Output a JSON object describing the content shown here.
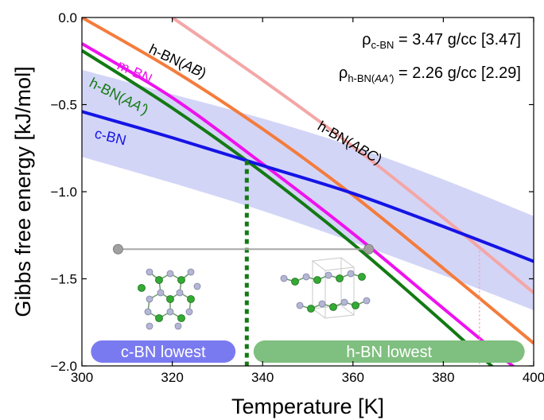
{
  "chart_data": {
    "type": "line",
    "xlabel": "Temperature [K]",
    "ylabel": "Gibbs free energy [kJ/mol]",
    "xlim": [
      300,
      400
    ],
    "ylim": [
      -2.0,
      0.0
    ],
    "x_ticks": [
      "300",
      "320",
      "340",
      "360",
      "380",
      "400"
    ],
    "y_ticks": [
      "0.0",
      "−0.5",
      "−1.0",
      "−1.5",
      "−2.0"
    ],
    "x_tick_values": [
      300,
      320,
      340,
      360,
      380,
      400
    ],
    "y_tick_values": [
      0.0,
      -0.5,
      -1.0,
      -1.5,
      -2.0
    ],
    "series": [
      {
        "name": "c-BN",
        "color": "#1414e6",
        "x": [
          300,
          320,
          340,
          360,
          380,
          400
        ],
        "y": [
          -0.54,
          -0.69,
          -0.85,
          -1.01,
          -1.2,
          -1.4
        ]
      },
      {
        "name": "h-BN(AB)",
        "color": "#f47c3c",
        "x": [
          300,
          320,
          340,
          360,
          380,
          400
        ],
        "y": [
          0.0,
          -0.3,
          -0.64,
          -1.02,
          -1.44,
          -1.87
        ]
      },
      {
        "name": "m-BN",
        "color": "#ee12ee",
        "x": [
          300,
          320,
          340,
          360,
          380,
          400
        ],
        "y": [
          -0.15,
          -0.46,
          -0.84,
          -1.24,
          -1.67,
          -2.1
        ]
      },
      {
        "name": "h-BN(AA')",
        "color": "#137a13",
        "x": [
          300,
          320,
          340,
          360,
          380,
          400
        ],
        "y": [
          -0.19,
          -0.52,
          -0.89,
          -1.3,
          -1.75,
          -2.22
        ]
      },
      {
        "name": "h-BN(ABC)",
        "color": "#f4a6a6",
        "x": [
          320,
          340,
          360,
          380,
          400
        ],
        "y": [
          0.0,
          -0.36,
          -0.74,
          -1.15,
          -1.58
        ]
      }
    ],
    "uncertainty_band": {
      "color": "#d3d5f7",
      "x": [
        300,
        320,
        340,
        360,
        380,
        400
      ],
      "upper": [
        -0.3,
        -0.44,
        -0.58,
        -0.74,
        -0.93,
        -1.14
      ],
      "lower": [
        -0.8,
        -0.95,
        -1.11,
        -1.29,
        -1.48,
        -1.68
      ]
    },
    "transition_temperature": 336.5,
    "secondary_marker_temperature": 388,
    "scale_bar": {
      "x": [
        308,
        363.5
      ],
      "y": -1.33
    },
    "annotations": {
      "rho_c": {
        "sym": "ρ",
        "sub": "c-BN",
        "text": " = 3.47 g/cc [3.47]"
      },
      "rho_h": {
        "sym": "ρ",
        "sub": "h-BN(",
        "sub_italic": "AA'",
        "sub_end": ")",
        "text": " = 2.26 g/cc [2.29]"
      }
    },
    "curve_labels": {
      "hbn_ab": {
        "prefix": "h-BN(",
        "italic": "AB",
        "suffix": ")"
      },
      "mbn": "m-BN",
      "hbn_aap": {
        "prefix": "h-BN(",
        "italic": "AA'",
        "suffix": ")"
      },
      "cbn": "c-BN",
      "hbn_abc": {
        "prefix": "h-BN(",
        "italic": "ABC",
        "suffix": ")"
      }
    },
    "regions": [
      {
        "label": "c-BN lowest",
        "from": 302,
        "to": 334,
        "color": "#7a7af0"
      },
      {
        "label": "h-BN lowest",
        "from": 338,
        "to": 398,
        "color": "#7fbf7f"
      }
    ]
  }
}
